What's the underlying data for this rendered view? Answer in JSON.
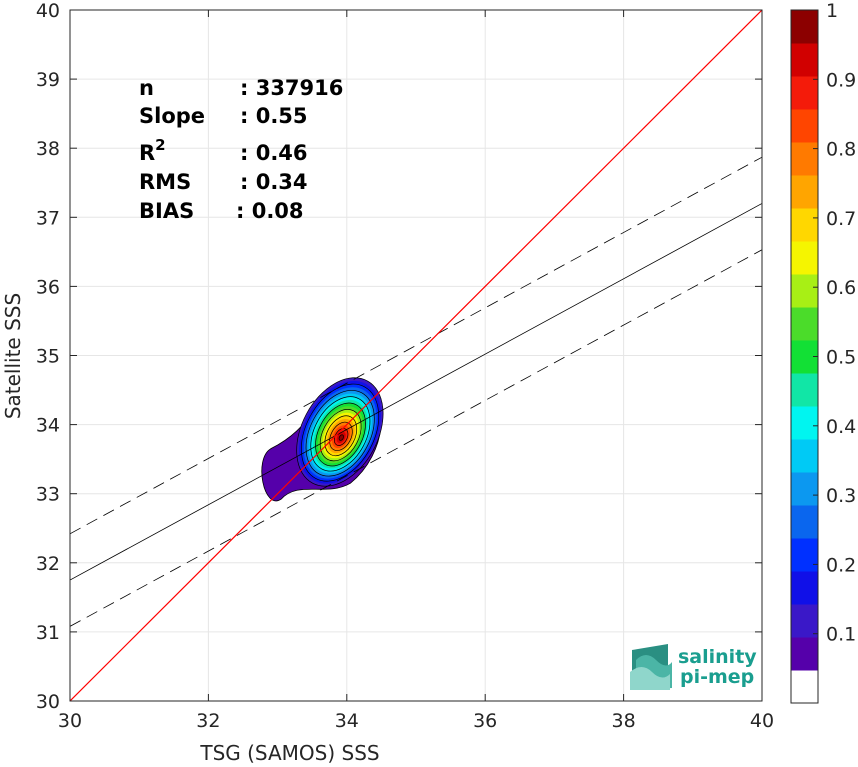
{
  "chart_data": {
    "type": "density-scatter",
    "xlabel": "TSG (SAMOS) SSS",
    "ylabel": "Satellite SSS",
    "xlim": [
      30,
      40
    ],
    "ylim": [
      30,
      40
    ],
    "xticks": [
      "30",
      "32",
      "34",
      "36",
      "38",
      "40"
    ],
    "yticks": [
      "30",
      "31",
      "32",
      "33",
      "34",
      "35",
      "36",
      "37",
      "38",
      "39",
      "40"
    ],
    "grid": true,
    "stats": [
      {
        "label": "n",
        "value": ": 337916"
      },
      {
        "label": "Slope",
        "value": ": 0.55"
      },
      {
        "label": "R",
        "sup": "2",
        "value": ": 0.46"
      },
      {
        "label": "RMS",
        "value": ": 0.34"
      },
      {
        "label": "BIAS",
        "value": ": 0.08"
      }
    ],
    "identity_line": {
      "color": "#ff0000",
      "from": [
        30,
        30
      ],
      "to": [
        40,
        40
      ]
    },
    "regression_line": {
      "from": [
        30,
        31.75
      ],
      "to": [
        40,
        37.2
      ]
    },
    "confidence_upper": {
      "from": [
        30,
        32.42
      ],
      "to": [
        40,
        37.87
      ]
    },
    "confidence_lower": {
      "from": [
        30,
        31.08
      ],
      "to": [
        40,
        36.53
      ]
    },
    "density_center": [
      33.9,
      33.85
    ],
    "colorbar": {
      "ticks": [
        "0.1",
        "0.2",
        "0.3",
        "0.4",
        "0.5",
        "0.6",
        "0.7",
        "0.8",
        "0.9",
        "1"
      ],
      "range": [
        0,
        1
      ],
      "levels": [
        0.05,
        0.1,
        0.15,
        0.2,
        0.25,
        0.3,
        0.35,
        0.4,
        0.45,
        0.5,
        0.55,
        0.6,
        0.65,
        0.7,
        0.75,
        0.8,
        0.85,
        0.9,
        0.95,
        1.0
      ],
      "colors": [
        "#ffffff",
        "#5500aa",
        "#3a18c8",
        "#1010e8",
        "#0030ff",
        "#0a66ee",
        "#0c98f0",
        "#00caf5",
        "#00f5f0",
        "#11e6a6",
        "#12e035",
        "#4bdc2a",
        "#a8ef15",
        "#f5f500",
        "#ffd700",
        "#ffa500",
        "#ff7a00",
        "#ff4500",
        "#f41b0a",
        "#d10000",
        "#8c0000"
      ]
    },
    "logo": {
      "line1": "salinity",
      "line2": "pi-mep"
    }
  }
}
